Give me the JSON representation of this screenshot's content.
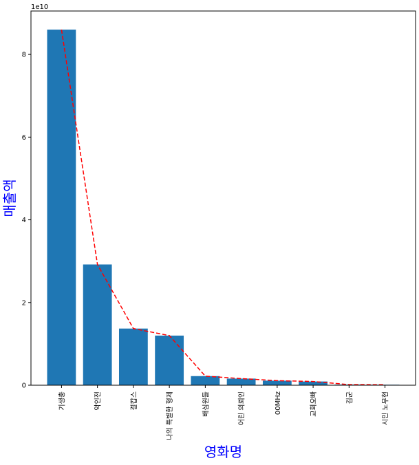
{
  "chart_data": {
    "type": "bar",
    "title": "",
    "xlabel": "영화명",
    "ylabel": "매출액",
    "offset_label": "1e10",
    "categories": [
      "기생충",
      "악인전",
      "걸캅스",
      "나의 특별한 형제",
      "배심원들",
      "어린 의뢰인",
      "00MHz",
      "교회오빠",
      "김군",
      "시민 노무현"
    ],
    "values": [
      86000000000,
      29200000000,
      13700000000,
      12000000000,
      2200000000,
      1600000000,
      1100000000,
      900000000,
      150000000,
      120000000
    ],
    "overlay_line": {
      "style": "dashed",
      "values": [
        86000000000,
        29200000000,
        13700000000,
        12000000000,
        2200000000,
        1600000000,
        1100000000,
        900000000,
        150000000,
        120000000
      ]
    },
    "yticks": [
      0,
      20000000000,
      40000000000,
      60000000000,
      80000000000
    ],
    "ytick_labels": [
      "0",
      "2",
      "4",
      "6",
      "8"
    ],
    "ylim": [
      0,
      90500000000
    ],
    "grid": false,
    "legend": "none",
    "colors": {
      "bar": "#1f77b4",
      "line": "#ff0000",
      "axis_label": "#0000ff"
    }
  }
}
